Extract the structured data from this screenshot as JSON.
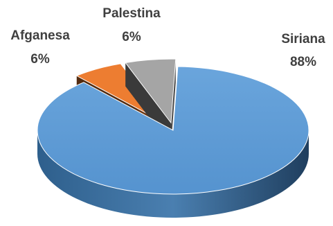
{
  "chart_data": {
    "type": "pie",
    "title": "",
    "slices": [
      {
        "name": "Siriana",
        "value": 88,
        "label": "88%",
        "color": "#5b9bd5",
        "exploded": false
      },
      {
        "name": "Afganesa",
        "value": 6,
        "label": "6%",
        "color": "#ed7d31",
        "exploded": true
      },
      {
        "name": "Palestina",
        "value": 6,
        "label": "6%",
        "color": "#a5a5a5",
        "exploded": true
      }
    ],
    "style": "3d",
    "legend": "none"
  }
}
